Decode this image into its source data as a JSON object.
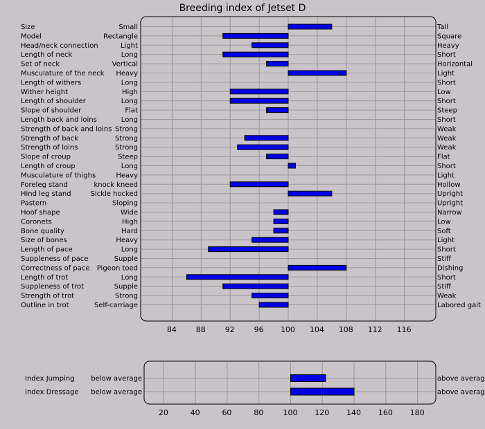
{
  "colors": {
    "background": "#c8c4c8",
    "bar_fill": "#0000e6",
    "bar_stroke": "#000000",
    "grid": "#9a969a",
    "frame": "#000000",
    "text": "#000000"
  },
  "chart_data": [
    {
      "type": "bar",
      "orientation": "horizontal",
      "title": "Breeding index of Jetset D",
      "baseline": 100,
      "xlim": [
        80,
        120
      ],
      "xticks": [
        84,
        88,
        92,
        96,
        100,
        104,
        108,
        112,
        116
      ],
      "grid": true,
      "traits": [
        {
          "label": "Size",
          "left": "Small",
          "right": "Tall",
          "value": 106
        },
        {
          "label": "Model",
          "left": "Rectangle",
          "right": "Square",
          "value": 91
        },
        {
          "label": "Head/neck connection",
          "left": "Light",
          "right": "Heavy",
          "value": 95
        },
        {
          "label": "Length of neck",
          "left": "Long",
          "right": "Short",
          "value": 91
        },
        {
          "label": "Set of neck",
          "left": "Vertical",
          "right": "Horizontal",
          "value": 97
        },
        {
          "label": "Musculature of the neck",
          "left": "Heavy",
          "right": "Light",
          "value": 108
        },
        {
          "label": "Length of withers",
          "left": "Long",
          "right": "Short",
          "value": 100
        },
        {
          "label": "Wither height",
          "left": "High",
          "right": "Low",
          "value": 92
        },
        {
          "label": "Length of shoulder",
          "left": "Long",
          "right": "Short",
          "value": 92
        },
        {
          "label": "Slope of shoulder",
          "left": "Flat",
          "right": "Steep",
          "value": 97
        },
        {
          "label": "Length back and loins",
          "left": "Long",
          "right": "Short",
          "value": 100
        },
        {
          "label": "Strength of back and loins",
          "left": "Strong",
          "right": "Weak",
          "value": 100
        },
        {
          "label": "Strength of back",
          "left": "Strong",
          "right": "Weak",
          "value": 94
        },
        {
          "label": "Strength of loins",
          "left": "Strong",
          "right": "Weak",
          "value": 93
        },
        {
          "label": "Slope of croup",
          "left": "Steep",
          "right": "Flat",
          "value": 97
        },
        {
          "label": "Length of croup",
          "left": "Long",
          "right": "Short",
          "value": 101
        },
        {
          "label": "Musculature of thighs",
          "left": "Heavy",
          "right": "Light",
          "value": 100
        },
        {
          "label": "Foreleg stand",
          "left": "knock kneed",
          "right": "Hollow",
          "value": 92
        },
        {
          "label": "Hind leg stand",
          "left": "Sickle hocked",
          "right": "Upright",
          "value": 106
        },
        {
          "label": "Pastern",
          "left": "Sloping",
          "right": "Upright",
          "value": 100
        },
        {
          "label": "Hoof shape",
          "left": "Wide",
          "right": "Narrow",
          "value": 98
        },
        {
          "label": "Coronets",
          "left": "High",
          "right": "Low",
          "value": 98
        },
        {
          "label": "Bone quality",
          "left": "Hard",
          "right": "Soft",
          "value": 98
        },
        {
          "label": "Size of bones",
          "left": "Heavy",
          "right": "Light",
          "value": 95
        },
        {
          "label": "Length of pace",
          "left": "Long",
          "right": "Short",
          "value": 89
        },
        {
          "label": "Suppleness of pace",
          "left": "Supple",
          "right": "Stiff",
          "value": 100
        },
        {
          "label": "Correctness of pace",
          "left": "Pigeon toed",
          "right": "Dishing",
          "value": 108
        },
        {
          "label": "Length of trot",
          "left": "Long",
          "right": "Short",
          "value": 86
        },
        {
          "label": "Suppleness of trot",
          "left": "Supple",
          "right": "Stiff",
          "value": 91
        },
        {
          "label": "Strength of trot",
          "left": "Strong",
          "right": "Weak",
          "value": 95
        },
        {
          "label": "Outline in trot",
          "left": "Self-carriage",
          "right": "Labored gait",
          "value": 96
        }
      ]
    },
    {
      "type": "bar",
      "orientation": "horizontal",
      "title": "",
      "baseline": 100,
      "xlim": [
        10,
        190
      ],
      "xticks": [
        20,
        40,
        60,
        80,
        100,
        120,
        140,
        160,
        180
      ],
      "grid": true,
      "traits": [
        {
          "label": "Index Jumping",
          "left": "below average",
          "right": "above average",
          "value": 122
        },
        {
          "label": "Index Dressage",
          "left": "below average",
          "right": "above average",
          "value": 140
        }
      ]
    }
  ]
}
